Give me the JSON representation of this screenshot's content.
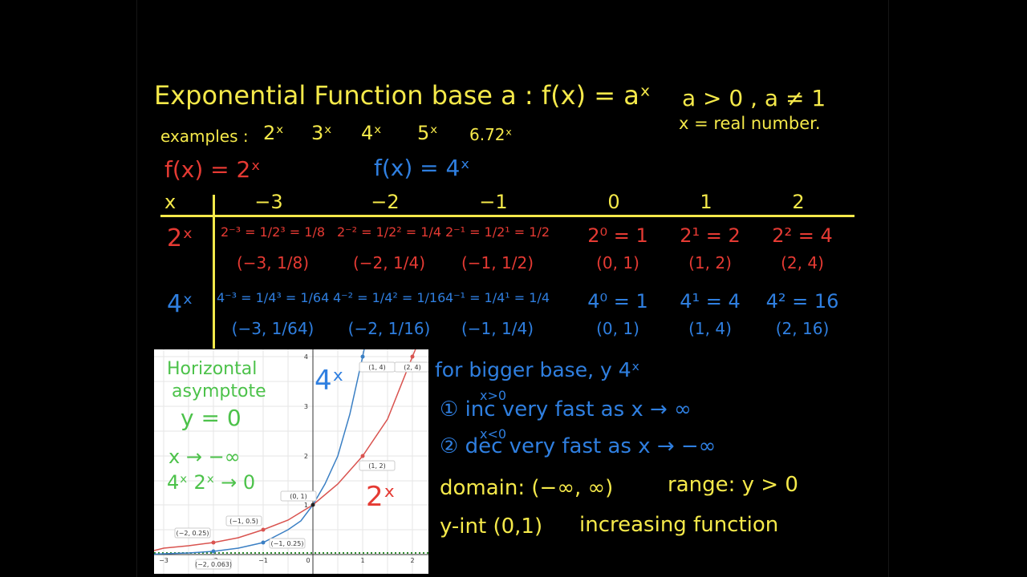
{
  "header": {
    "title": "Exponential Function base a : f(x) = aˣ",
    "conditions": "a > 0 , a ≠ 1",
    "domain_note": "x = real number."
  },
  "examples": {
    "label": "examples :",
    "items": [
      "2ˣ",
      "3ˣ",
      "4ˣ",
      "5ˣ",
      "6.72ˣ"
    ]
  },
  "functions": {
    "red": "f(x) = 2ˣ",
    "blue": "f(x) = 4ˣ"
  },
  "table": {
    "header": [
      "x",
      "−3",
      "−2",
      "−1",
      "0",
      "1",
      "2"
    ],
    "rows": [
      {
        "label": "2ˣ",
        "cells": [
          [
            "2⁻³ = 1/2³ = 1/8",
            "(−3, 1/8)"
          ],
          [
            "2⁻² = 1/2² = 1/4",
            "(−2, 1/4)"
          ],
          [
            "2⁻¹ = 1/2¹ = 1/2",
            "(−1, 1/2)"
          ],
          [
            "2⁰ = 1",
            "(0, 1)"
          ],
          [
            "2¹ = 2",
            "(1, 2)"
          ],
          [
            "2² = 4",
            "(2, 4)"
          ]
        ]
      },
      {
        "label": "4ˣ",
        "cells": [
          [
            "4⁻³ = 1/4³ = 1/64",
            "(−3, 1/64)"
          ],
          [
            "4⁻² = 1/4² = 1/16",
            "(−2, 1/16)"
          ],
          [
            "4⁻¹ = 1/4¹ = 1/4",
            "(−1, 1/4)"
          ],
          [
            "4⁰ = 1",
            "(0, 1)"
          ],
          [
            "4¹ = 4",
            "(1, 4)"
          ],
          [
            "4² = 16",
            "(2, 16)"
          ]
        ]
      }
    ]
  },
  "graph": {
    "notes": [
      "Horizontal",
      "asymptote",
      "y = 0",
      "x → −∞",
      "4ˣ  2ˣ → 0"
    ],
    "curve_labels": [
      "4ˣ",
      "2ˣ"
    ],
    "xtick_labels": [
      "−3",
      "−2",
      "−1",
      "0",
      "1",
      "2"
    ],
    "ytick_labels": [
      "1",
      "2",
      "3",
      "4"
    ],
    "point_labels": [
      "(1, 4)",
      "(2, 4)",
      "(1, 2)",
      "(0, 1)",
      "(−1, 0.5)",
      "(−2, 0.25)",
      "(−1, 0.25)",
      "(−2, 0.063)"
    ]
  },
  "notes": {
    "bigger_base": "for bigger base, y   4ˣ",
    "inc_cond": "x>0",
    "inc": "① inc very fast as x → ∞",
    "dec_cond": "x<0",
    "dec": "② dec very fast as x → −∞",
    "domain": "domain: (−∞, ∞)",
    "range": "range: y > 0",
    "yint": "y-int (0,1)",
    "increasing": "increasing function"
  }
}
